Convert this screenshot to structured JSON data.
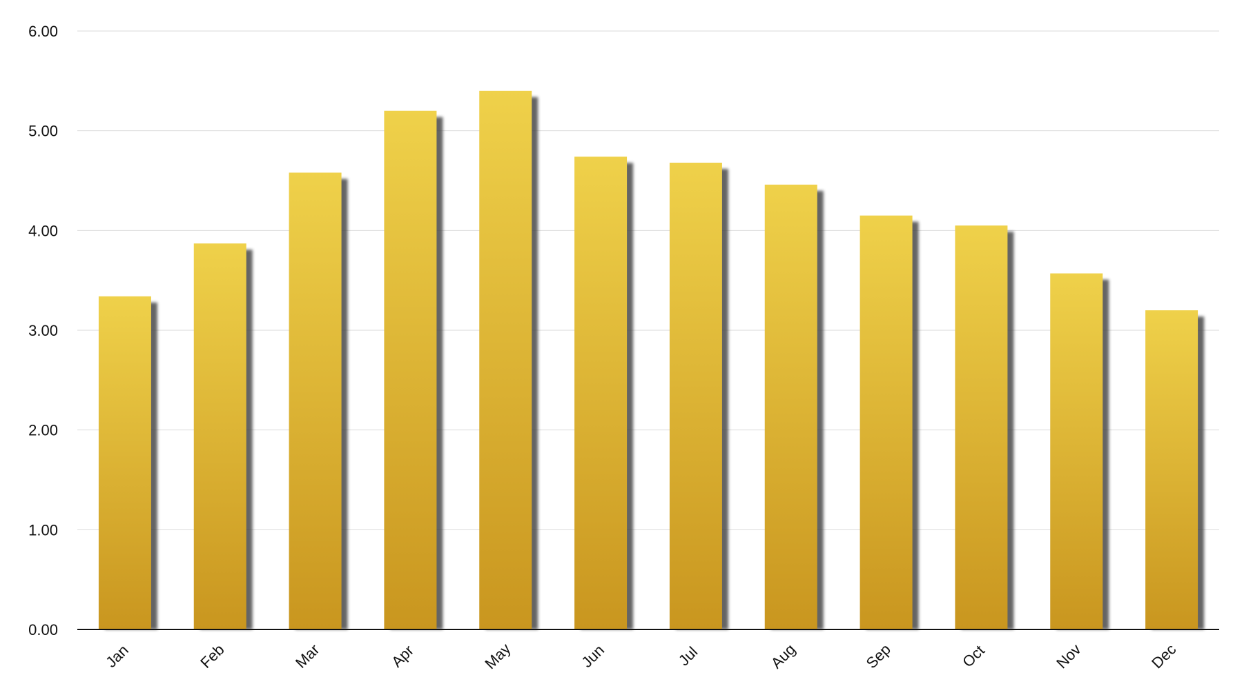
{
  "colors": {
    "bar_top": "#EFD14A",
    "bar_bottom": "#C9961F",
    "shadow": "#4a4a4a",
    "grid": "#d9d9d9",
    "axis": "#111111",
    "background": "#ffffff"
  },
  "chart_data": {
    "type": "bar",
    "title": "",
    "xlabel": "",
    "ylabel": "",
    "ylim": [
      0,
      6
    ],
    "yticks": [
      "0.00",
      "1.00",
      "2.00",
      "3.00",
      "4.00",
      "5.00",
      "6.00"
    ],
    "grid": true,
    "legend": "none",
    "categories": [
      "Jan",
      "Feb",
      "Mar",
      "Apr",
      "May",
      "Jun",
      "Jul",
      "Aug",
      "Sep",
      "Oct",
      "Nov",
      "Dec"
    ],
    "values": [
      3.34,
      3.87,
      4.58,
      5.2,
      5.4,
      4.74,
      4.68,
      4.46,
      4.15,
      4.05,
      3.57,
      3.2
    ]
  }
}
